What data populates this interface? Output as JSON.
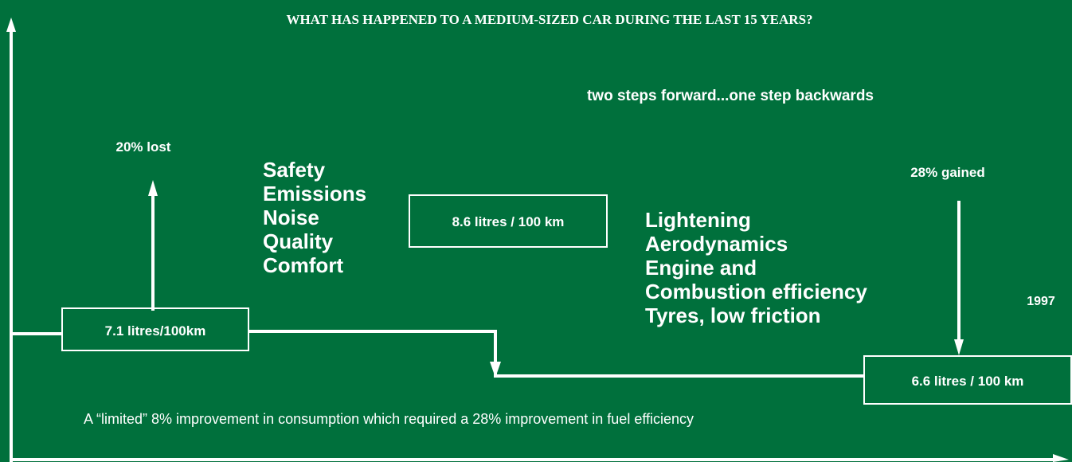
{
  "title": "WHAT HAS HAPPENED TO A MEDIUM-SIZED CAR DURING THE LAST 15 YEARS?",
  "subtitle": "two steps forward...one step backwards",
  "lost_label": "20% lost",
  "gained_label": "28% gained",
  "factors_lost": [
    "Safety",
    "Emissions",
    "Noise",
    "Quality",
    "Comfort"
  ],
  "factors_gained": [
    "Lightening",
    "Aerodynamics",
    "Engine and",
    "Combustion efficiency",
    "Tyres, low friction"
  ],
  "boxes": {
    "start": "7.1 litres/100km",
    "middle": "8.6 litres / 100 km",
    "end": "6.6 litres / 100 km"
  },
  "year": "1997",
  "footnote": "A  “limited” 8% improvement in consumption which required a 28% improvement in fuel efficiency"
}
